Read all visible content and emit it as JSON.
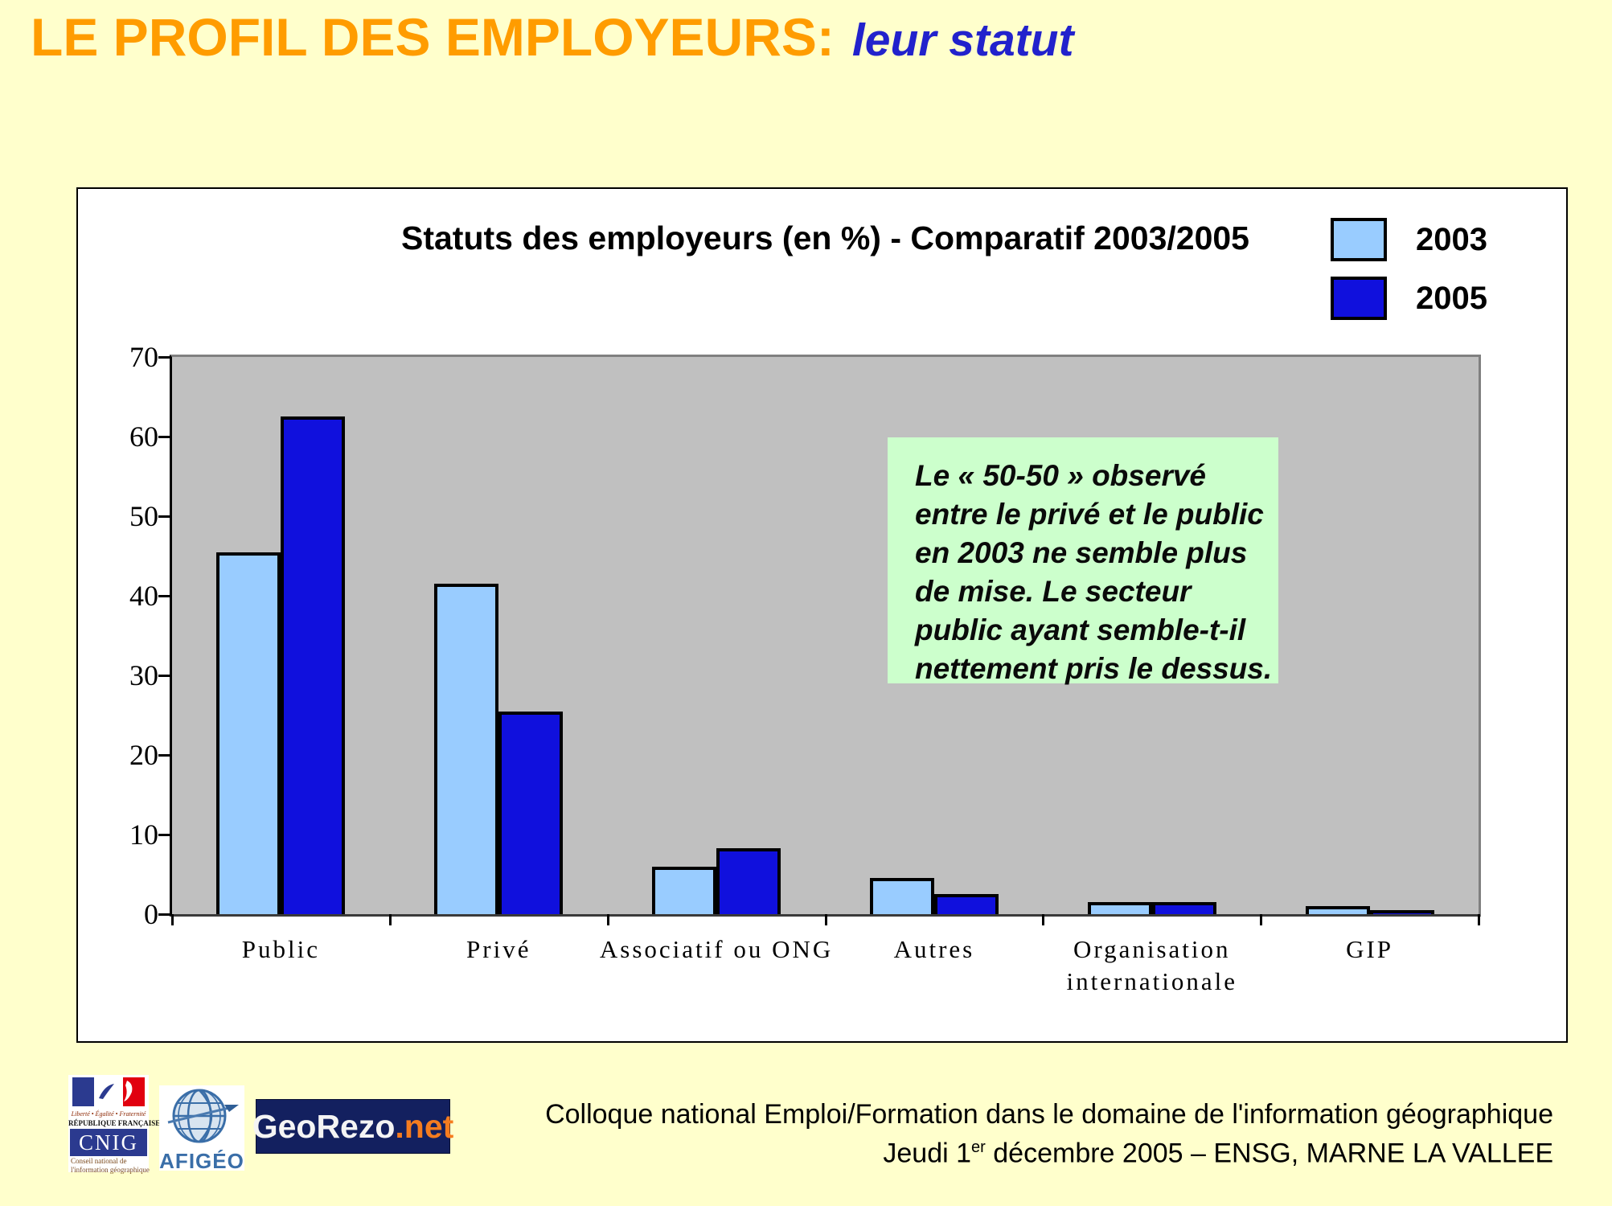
{
  "slide": {
    "title_main": "LE PROFIL DES EMPLOYEURS:",
    "title_sub": "leur statut"
  },
  "chart_data": {
    "type": "bar",
    "title": "Statuts des employeurs (en %) - Comparatif 2003/2005",
    "categories": [
      "Public",
      "Privé",
      "Associatif ou ONG",
      "Autres",
      "Organisation internationale",
      "GIP"
    ],
    "series": [
      {
        "name": "2003",
        "color": "#99CCFF",
        "values": [
          45.5,
          41.5,
          6,
          4.5,
          1.5,
          1
        ]
      },
      {
        "name": "2005",
        "color": "#1010DD",
        "values": [
          62.5,
          25.5,
          8.3,
          2.5,
          1.5,
          0.5
        ]
      }
    ],
    "ylabel": "",
    "xlabel": "",
    "ylim": [
      0,
      70
    ],
    "yticks": [
      0,
      10,
      20,
      30,
      40,
      50,
      60,
      70
    ],
    "grid": false,
    "legend_position": "top-right",
    "plot_bg": "#C0C0C0"
  },
  "note": {
    "bg": "#CCFFCC",
    "lines": [
      "Le « 50-50 » observé",
      "entre le privé et le public",
      "en 2003 ne semble plus",
      "de mise. Le secteur",
      "public ayant semble-t-il",
      "nettement pris le dessus."
    ]
  },
  "footer": {
    "logos": {
      "cnig": {
        "motto": "Liberté • Égalité • Fraternité",
        "republic": "RÉPUBLIQUE FRANÇAISE",
        "acronym": "CNIG",
        "caption_line1": "Conseil national de",
        "caption_line2": "l'information géographique"
      },
      "afigeo": {
        "label": "AFIGÉO"
      },
      "georezo": {
        "name": "GeoRezo",
        "tld": ".net"
      }
    },
    "line1": "Colloque national Emploi/Formation dans le domaine de l'information géographique",
    "line2_prefix": "Jeudi 1",
    "line2_sup": "er",
    "line2_suffix": " décembre 2005 – ENSG, MARNE LA VALLEE"
  }
}
